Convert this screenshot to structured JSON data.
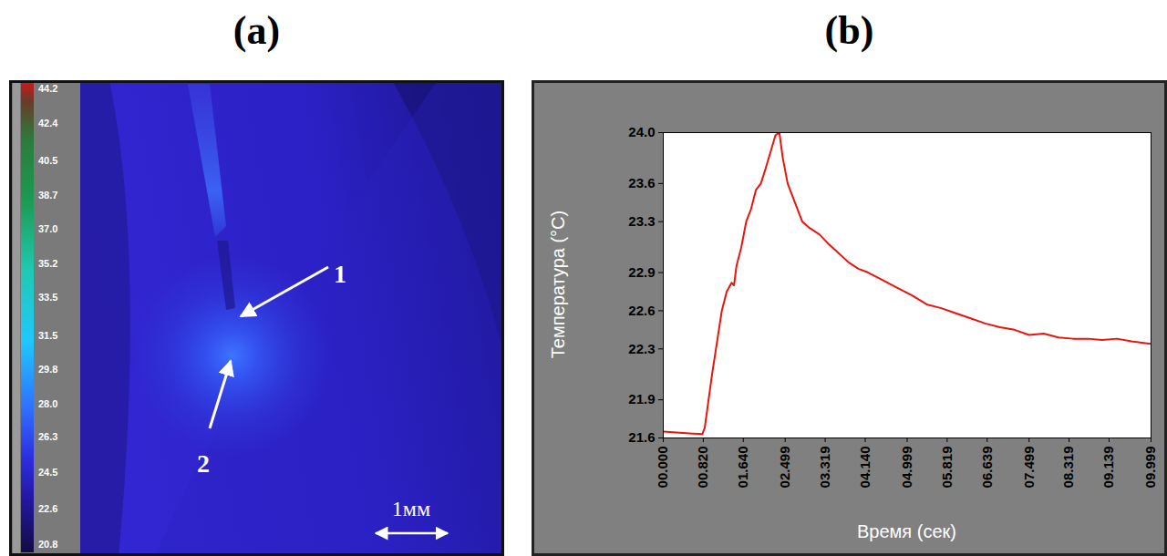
{
  "chart_data": [
    {
      "type": "thermal_image",
      "title": "(a)",
      "colorbar": {
        "range": [
          20.8,
          44.2
        ],
        "ticks": [
          44.2,
          42.4,
          40.5,
          38.7,
          {
            "value": 37,
            "label": "37.0"
          },
          35.2,
          33.5,
          31.5,
          29.8,
          {
            "value": 28,
            "label": "28.0"
          },
          26.3,
          24.5,
          22.6,
          20.8
        ]
      },
      "annotations": [
        "1",
        "2"
      ],
      "scale_bar": "1мм"
    },
    {
      "type": "line",
      "title": "(b)",
      "x_label": "Время (сек)",
      "y_label": "Температура (°C)",
      "x": [
        0,
        0.4,
        0.8,
        0.85,
        1.0,
        1.1,
        1.2,
        1.3,
        1.4,
        1.45,
        1.5,
        1.6,
        1.7,
        1.8,
        1.9,
        2.0,
        2.1,
        2.2,
        2.3,
        2.38,
        2.45,
        2.55,
        2.7,
        2.85,
        3.0,
        3.2,
        3.4,
        3.6,
        3.8,
        4.0,
        4.2,
        4.5,
        4.8,
        5.1,
        5.4,
        5.7,
        6.0,
        6.3,
        6.6,
        6.9,
        7.2,
        7.5,
        7.8,
        8.1,
        8.4,
        8.7,
        9.0,
        9.3,
        9.6,
        9.999
      ],
      "values": [
        21.65,
        21.64,
        21.63,
        21.68,
        22.1,
        22.35,
        22.6,
        22.75,
        22.82,
        22.8,
        22.95,
        23.1,
        23.3,
        23.4,
        23.55,
        23.6,
        23.72,
        23.85,
        23.98,
        24.0,
        23.8,
        23.6,
        23.45,
        23.3,
        23.25,
        23.2,
        23.12,
        23.05,
        22.98,
        22.93,
        22.9,
        22.84,
        22.78,
        22.72,
        22.65,
        22.62,
        22.58,
        22.54,
        22.5,
        22.47,
        22.45,
        22.41,
        22.42,
        22.39,
        22.38,
        22.38,
        22.37,
        22.38,
        22.36,
        22.34
      ],
      "color": "#e8150f",
      "xlim": [
        0,
        9.999
      ],
      "ylim": [
        21.6,
        24
      ],
      "xticks": [
        {
          "value": 0,
          "label": "00.000"
        },
        {
          "value": 0.82,
          "label": "00.820"
        },
        {
          "value": 1.64,
          "label": "01.640"
        },
        {
          "value": 2.499,
          "label": "02.499"
        },
        {
          "value": 3.319,
          "label": "03.319"
        },
        {
          "value": 4.14,
          "label": "04.140"
        },
        {
          "value": 4.999,
          "label": "04.999"
        },
        {
          "value": 5.819,
          "label": "05.819"
        },
        {
          "value": 6.639,
          "label": "06.639"
        },
        {
          "value": 7.499,
          "label": "07.499"
        },
        {
          "value": 8.319,
          "label": "08.319"
        },
        {
          "value": 9.139,
          "label": "09.139"
        },
        {
          "value": 9.999,
          "label": "09.999"
        }
      ],
      "yticks": [
        21.6,
        21.9,
        22.3,
        22.6,
        22.9,
        23.3,
        23.6,
        {
          "value": 24,
          "label": "24.0"
        }
      ],
      "grid": false
    }
  ]
}
